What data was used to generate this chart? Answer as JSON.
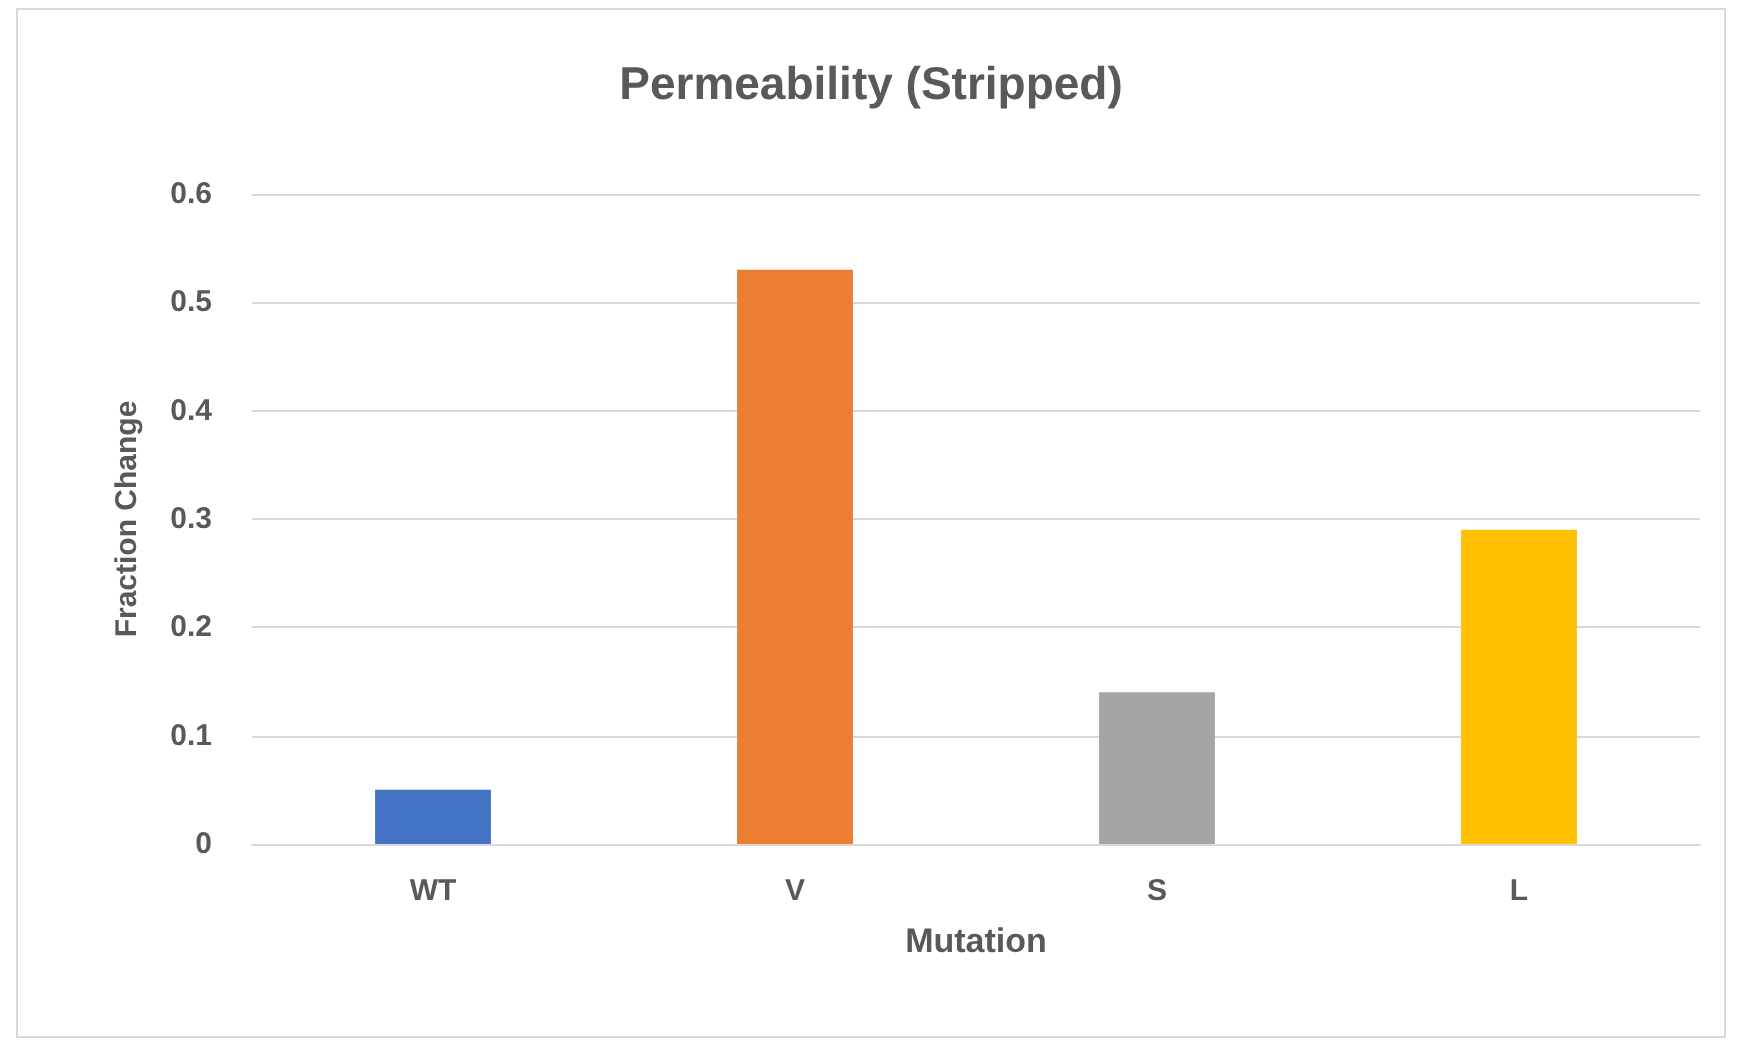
{
  "chart_data": {
    "type": "bar",
    "title": "Permeability (Stripped)",
    "xlabel": "Mutation",
    "ylabel": "Fraction Change",
    "categories": [
      "WT",
      "V",
      "S",
      "L"
    ],
    "values": [
      0.05,
      0.53,
      0.14,
      0.29
    ],
    "colors": [
      "#4472c4",
      "#ed7d31",
      "#a5a5a5",
      "#ffc000"
    ],
    "ylim": [
      0,
      0.6
    ],
    "yticks": [
      0,
      0.1,
      0.2,
      0.3,
      0.4,
      0.5,
      0.6
    ],
    "grid": "y"
  }
}
